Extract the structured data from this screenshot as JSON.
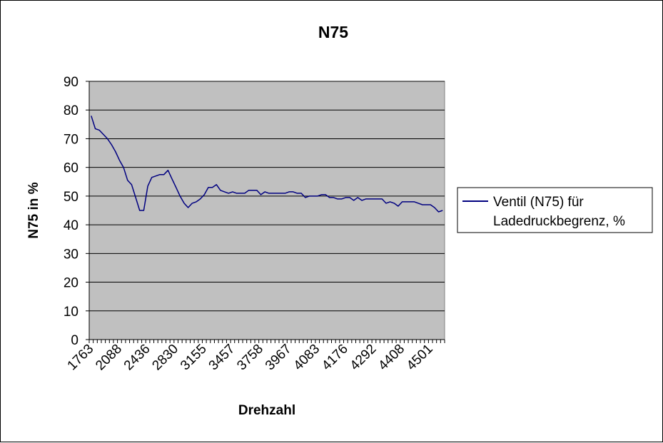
{
  "chart_data": {
    "type": "line",
    "title": "N75",
    "xlabel": "Drehzahl",
    "ylabel": "N75 in %",
    "ylim": [
      0,
      90
    ],
    "y_ticks": [
      0,
      10,
      20,
      30,
      40,
      50,
      60,
      70,
      80,
      90
    ],
    "x_tick_labels": [
      "1763",
      "2088",
      "2436",
      "2830",
      "3155",
      "3457",
      "3758",
      "3967",
      "4083",
      "4176",
      "4292",
      "4408",
      "4501"
    ],
    "grid": true,
    "legend_position": "right",
    "colors": {
      "plot_area": "#c0c0c0",
      "series": "#000080",
      "gridline": "#000000"
    },
    "series": [
      {
        "name": "Ventil (N75) für Ladedruckbegrenz,  %",
        "values": [
          78,
          73.5,
          73,
          71.5,
          70,
          68,
          65.5,
          62.5,
          60,
          55.5,
          54,
          49.5,
          45,
          45,
          53.5,
          56.5,
          57,
          57.5,
          57.5,
          59,
          56,
          53,
          50,
          47.5,
          46,
          47.5,
          48,
          49,
          50.5,
          53,
          53,
          54,
          52,
          51.5,
          51,
          51.5,
          51,
          51,
          51,
          52,
          52,
          52,
          50.5,
          51.5,
          51,
          51,
          51,
          51,
          51,
          51.5,
          51.5,
          51,
          51,
          49.5,
          50,
          50,
          50,
          50.5,
          50.5,
          49.5,
          49.5,
          49,
          49,
          49.5,
          49.5,
          48.5,
          49.5,
          48.5,
          49,
          49,
          49,
          49,
          49,
          47.5,
          48,
          47.5,
          46.5,
          48,
          48,
          48,
          48,
          47.5,
          47,
          47,
          47,
          46,
          44.5,
          45
        ]
      }
    ]
  }
}
